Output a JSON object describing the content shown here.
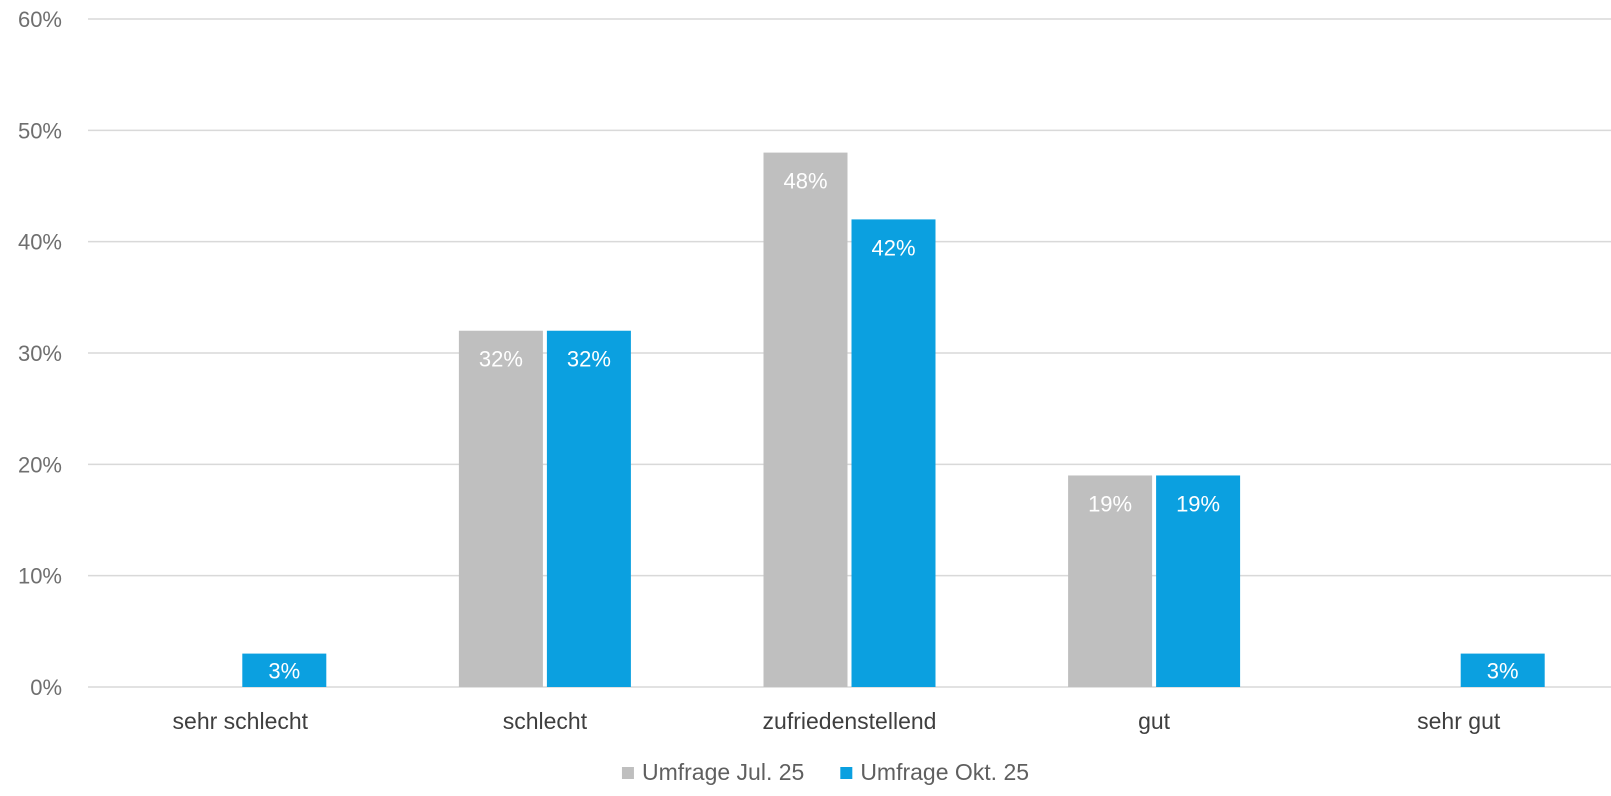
{
  "chart_data": {
    "type": "bar",
    "categories": [
      "sehr schlecht",
      "schlecht",
      "zufriedenstellend",
      "gut",
      "sehr gut"
    ],
    "series": [
      {
        "name": "Umfrage Jul. 25",
        "values": [
          0,
          32,
          48,
          19,
          0
        ],
        "labels": [
          "",
          "32%",
          "48%",
          "19%",
          ""
        ],
        "color": "#bfbfbf"
      },
      {
        "name": "Umfrage Okt. 25",
        "values": [
          3,
          32,
          42,
          19,
          3
        ],
        "labels": [
          "3%",
          "32%",
          "42%",
          "19%",
          "3%"
        ],
        "color": "#0ba0e0"
      }
    ],
    "yticks": [
      "0%",
      "10%",
      "20%",
      "30%",
      "40%",
      "50%",
      "60%"
    ],
    "ylim": [
      0,
      60
    ],
    "grid": true,
    "legend_position": "bottom"
  }
}
